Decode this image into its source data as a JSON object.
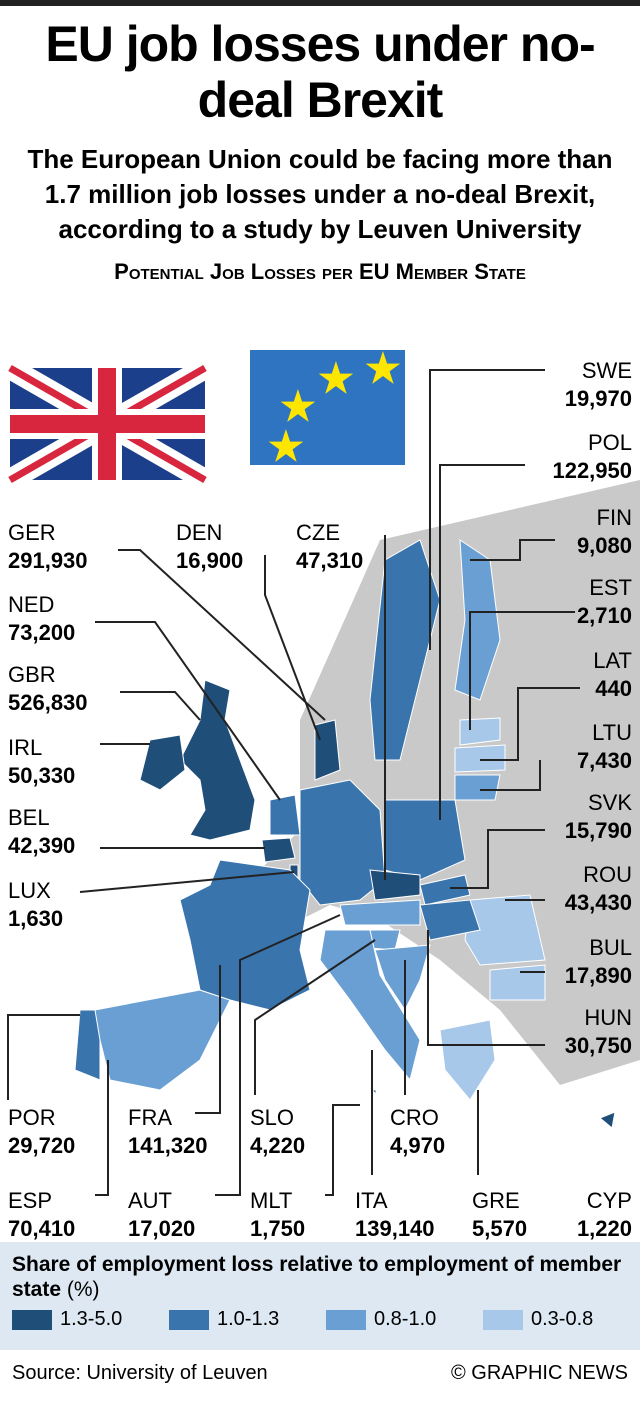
{
  "header": {
    "title": "EU job losses under no-deal Brexit",
    "subtitle": "The European Union could be facing more than 1.7 million job losses under a no-deal Brexit, according to a study by Leuven University"
  },
  "map": {
    "title": "Potential Job Losses per EU Member State",
    "countries": [
      {
        "code": "SWE",
        "value": "19,970",
        "color": "#3a74ad"
      },
      {
        "code": "POL",
        "value": "122,950",
        "color": "#3a74ad"
      },
      {
        "code": "FIN",
        "value": "9,080",
        "color": "#6a9fd4"
      },
      {
        "code": "EST",
        "value": "2,710",
        "color": "#a8c8ea"
      },
      {
        "code": "LAT",
        "value": "440",
        "color": "#a8c8ea"
      },
      {
        "code": "LTU",
        "value": "7,430",
        "color": "#6a9fd4"
      },
      {
        "code": "SVK",
        "value": "15,790",
        "color": "#3a74ad"
      },
      {
        "code": "ROU",
        "value": "43,430",
        "color": "#a8c8ea"
      },
      {
        "code": "BUL",
        "value": "17,890",
        "color": "#a8c8ea"
      },
      {
        "code": "HUN",
        "value": "30,750",
        "color": "#3a74ad"
      },
      {
        "code": "CYP",
        "value": "1,220",
        "color": "#1f4e79"
      },
      {
        "code": "GER",
        "value": "291,930",
        "color": "#3a74ad"
      },
      {
        "code": "NED",
        "value": "73,200",
        "color": "#3a74ad"
      },
      {
        "code": "GBR",
        "value": "526,830",
        "color": "#1f4e79"
      },
      {
        "code": "IRL",
        "value": "50,330",
        "color": "#1f4e79"
      },
      {
        "code": "BEL",
        "value": "42,390",
        "color": "#1f4e79"
      },
      {
        "code": "LUX",
        "value": "1,630",
        "color": "#1f4e79"
      },
      {
        "code": "POR",
        "value": "29,720",
        "color": "#3a74ad"
      },
      {
        "code": "ESP",
        "value": "70,410",
        "color": "#6a9fd4"
      },
      {
        "code": "DEN",
        "value": "16,900",
        "color": "#1f4e79"
      },
      {
        "code": "CZE",
        "value": "47,310",
        "color": "#1f4e79"
      },
      {
        "code": "FRA",
        "value": "141,320",
        "color": "#3a74ad"
      },
      {
        "code": "AUT",
        "value": "17,020",
        "color": "#6a9fd4"
      },
      {
        "code": "SLO",
        "value": "4,220",
        "color": "#6a9fd4"
      },
      {
        "code": "MLT",
        "value": "1,750",
        "color": "#1f4e79"
      },
      {
        "code": "CRO",
        "value": "4,970",
        "color": "#6a9fd4"
      },
      {
        "code": "ITA",
        "value": "139,140",
        "color": "#6a9fd4"
      },
      {
        "code": "GRE",
        "value": "5,570",
        "color": "#a8c8ea"
      }
    ]
  },
  "legend": {
    "title": "Share of employment loss relative to employment of member state",
    "unit": "(%)",
    "items": [
      {
        "label": "1.3-5.0",
        "color": "#1f4e79"
      },
      {
        "label": "1.0-1.3",
        "color": "#3a74ad"
      },
      {
        "label": "0.8-1.0",
        "color": "#6a9fd4"
      },
      {
        "label": "0.3-0.8",
        "color": "#a8c8ea"
      }
    ]
  },
  "footer": {
    "source": "Source: University of Leuven",
    "credit": "© GRAPHIC NEWS"
  }
}
